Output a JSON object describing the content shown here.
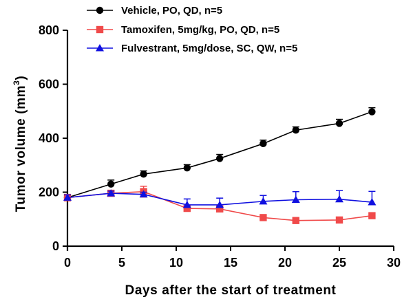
{
  "chart_data": {
    "type": "line",
    "title": "",
    "xlabel": "Days after the start of treatment",
    "ylabel_prefix": "Tumor volume (mm",
    "ylabel_sup": "3",
    "ylabel_suffix": ")",
    "xlim": [
      0,
      30
    ],
    "ylim": [
      0,
      800
    ],
    "xticks": [
      0,
      5,
      10,
      15,
      20,
      25,
      30
    ],
    "yticks": [
      0,
      200,
      400,
      600,
      800
    ],
    "grid": false,
    "legend_position": "top",
    "series": [
      {
        "name": "Vehicle, PO, QD, n=5",
        "color": "#000000",
        "marker": "circle",
        "error_direction": "up",
        "x": [
          0,
          4,
          7,
          11,
          14,
          18,
          21,
          25,
          28
        ],
        "y": [
          180,
          230,
          267,
          290,
          325,
          380,
          430,
          455,
          498
        ],
        "err": [
          10,
          15,
          12,
          12,
          15,
          13,
          12,
          15,
          15
        ]
      },
      {
        "name": "Tamoxifen, 5mg/kg, PO, QD, n=5",
        "color": "#f04a4a",
        "marker": "square",
        "error_direction": "both",
        "x": [
          0,
          4,
          7,
          11,
          14,
          18,
          21,
          25,
          28
        ],
        "y": [
          180,
          196,
          202,
          140,
          138,
          106,
          95,
          97,
          113
        ],
        "err": [
          12,
          10,
          20,
          10,
          10,
          5,
          5,
          5,
          7
        ]
      },
      {
        "name": "Fulvestrant, 5mg/dose, SC, QW, n=5",
        "color": "#1010e0",
        "marker": "triangle",
        "error_direction": "up",
        "x": [
          0,
          4,
          7,
          11,
          14,
          18,
          21,
          25,
          28
        ],
        "y": [
          180,
          196,
          192,
          153,
          153,
          166,
          172,
          174,
          163
        ],
        "err": [
          10,
          8,
          8,
          22,
          25,
          22,
          30,
          32,
          40
        ]
      }
    ]
  }
}
